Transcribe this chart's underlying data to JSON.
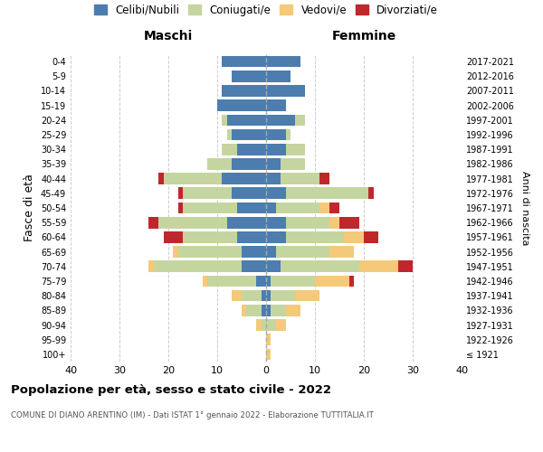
{
  "age_groups": [
    "100+",
    "95-99",
    "90-94",
    "85-89",
    "80-84",
    "75-79",
    "70-74",
    "65-69",
    "60-64",
    "55-59",
    "50-54",
    "45-49",
    "40-44",
    "35-39",
    "30-34",
    "25-29",
    "20-24",
    "15-19",
    "10-14",
    "5-9",
    "0-4"
  ],
  "birth_years": [
    "≤ 1921",
    "1922-1926",
    "1927-1931",
    "1932-1936",
    "1937-1941",
    "1942-1946",
    "1947-1951",
    "1952-1956",
    "1957-1961",
    "1962-1966",
    "1967-1971",
    "1972-1976",
    "1977-1981",
    "1982-1986",
    "1987-1991",
    "1992-1996",
    "1997-2001",
    "2002-2006",
    "2007-2011",
    "2012-2016",
    "2017-2021"
  ],
  "maschi": {
    "celibi": [
      0,
      0,
      0,
      1,
      1,
      2,
      5,
      5,
      6,
      8,
      6,
      7,
      9,
      7,
      6,
      7,
      8,
      10,
      9,
      7,
      9
    ],
    "coniugati": [
      0,
      0,
      1,
      3,
      4,
      10,
      18,
      13,
      11,
      14,
      11,
      10,
      12,
      5,
      3,
      1,
      1,
      0,
      0,
      0,
      0
    ],
    "vedovi": [
      0,
      0,
      1,
      1,
      2,
      1,
      1,
      1,
      0,
      0,
      0,
      0,
      0,
      0,
      0,
      0,
      0,
      0,
      0,
      0,
      0
    ],
    "divorziati": [
      0,
      0,
      0,
      0,
      0,
      0,
      0,
      0,
      4,
      2,
      1,
      1,
      1,
      0,
      0,
      0,
      0,
      0,
      0,
      0,
      0
    ]
  },
  "femmine": {
    "nubili": [
      0,
      0,
      0,
      1,
      1,
      1,
      3,
      2,
      4,
      4,
      2,
      4,
      3,
      3,
      4,
      4,
      6,
      4,
      8,
      5,
      7
    ],
    "coniugate": [
      0,
      0,
      2,
      3,
      5,
      9,
      16,
      11,
      12,
      9,
      9,
      17,
      8,
      5,
      4,
      1,
      2,
      0,
      0,
      0,
      0
    ],
    "vedove": [
      1,
      1,
      2,
      3,
      5,
      7,
      8,
      5,
      4,
      2,
      2,
      0,
      0,
      0,
      0,
      0,
      0,
      0,
      0,
      0,
      0
    ],
    "divorziate": [
      0,
      0,
      0,
      0,
      0,
      1,
      3,
      0,
      3,
      4,
      2,
      1,
      2,
      0,
      0,
      0,
      0,
      0,
      0,
      0,
      0
    ]
  },
  "color_celibi": "#4c7dae",
  "color_coniugati": "#c5d5a0",
  "color_vedovi": "#f5c97a",
  "color_divorziati": "#c0272d",
  "xlim": 40,
  "title": "Popolazione per età, sesso e stato civile - 2022",
  "subtitle": "COMUNE DI DIANO ARENTINO (IM) - Dati ISTAT 1° gennaio 2022 - Elaborazione TUTTITALIA.IT",
  "ylabel": "Fasce di età",
  "ylabel_right": "Anni di nascita",
  "label_maschi": "Maschi",
  "label_femmine": "Femmine",
  "legend_celibi": "Celibi/Nubili",
  "legend_coniugati": "Coniugati/e",
  "legend_vedovi": "Vedovi/e",
  "legend_divorziati": "Divorziati/e",
  "background_color": "#ffffff",
  "grid_color": "#cccccc"
}
